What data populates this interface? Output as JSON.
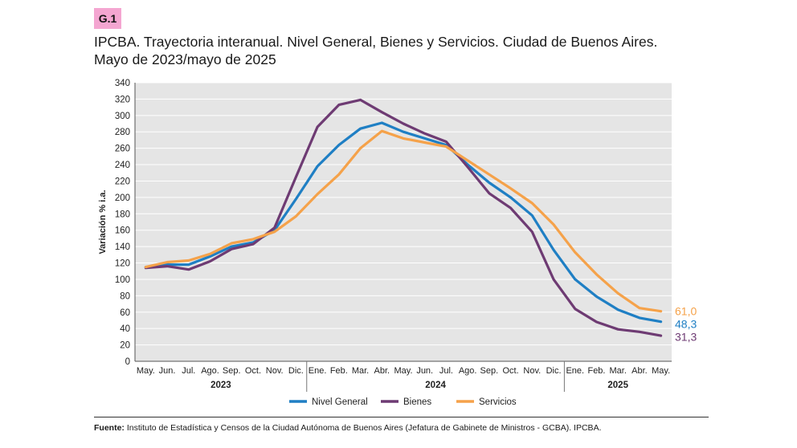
{
  "badge": "G.1",
  "title_line1": "IPCBA. Trayectoria interanual. Nivel General, Bienes y Servicios. Ciudad de Buenos Aires.",
  "title_line2": "Mayo de 2023/mayo de 2025",
  "source_label": "Fuente:",
  "source_text": "Instituto de Estadística y Censos de la Ciudad Autónoma de Buenos Aires (Jefatura de Gabinete de Ministros - GCBA). IPCBA.",
  "colors": {
    "nivel": "#1f7fc4",
    "bienes": "#6e3b73",
    "servicios": "#f5a24a",
    "plot_bg": "#e5e5e5",
    "grid": "#ffffff"
  },
  "chart_data": {
    "type": "line",
    "title": "IPCBA. Trayectoria interanual. Nivel General, Bienes y Servicios. Ciudad de Buenos Aires.",
    "ylabel": "Variación % i.a.",
    "xlabel": "",
    "ylim": [
      0,
      340
    ],
    "yticks": [
      0,
      20,
      40,
      60,
      80,
      100,
      120,
      140,
      160,
      180,
      200,
      220,
      240,
      260,
      280,
      300,
      320,
      340
    ],
    "categories": [
      "May.",
      "Jun.",
      "Jul.",
      "Ago.",
      "Sep.",
      "Oct.",
      "Nov.",
      "Dic.",
      "Ene.",
      "Feb.",
      "Mar.",
      "Abr.",
      "May.",
      "Jun.",
      "Jul.",
      "Ago.",
      "Sep.",
      "Oct.",
      "Nov.",
      "Dic.",
      "Ene.",
      "Feb.",
      "Mar.",
      "Abr.",
      "May."
    ],
    "years": [
      {
        "label": "2023",
        "start": 0,
        "end": 7
      },
      {
        "label": "2024",
        "start": 8,
        "end": 19
      },
      {
        "label": "2025",
        "start": 20,
        "end": 24
      }
    ],
    "series": [
      {
        "name": "Nivel General",
        "color": "#1f7fc4",
        "values": [
          115,
          118,
          118,
          128,
          140,
          145,
          160,
          198,
          238,
          264,
          284,
          291,
          280,
          272,
          264,
          240,
          218,
          200,
          178,
          136,
          100,
          79,
          63,
          53,
          48.3
        ],
        "end_label": "48,3"
      },
      {
        "name": "Bienes",
        "color": "#6e3b73",
        "values": [
          114,
          116,
          112,
          122,
          137,
          143,
          163,
          225,
          286,
          313,
          319,
          304,
          290,
          278,
          268,
          237,
          205,
          187,
          158,
          100,
          64,
          48,
          39,
          36,
          31.3
        ],
        "end_label": "31,3"
      },
      {
        "name": "Servicios",
        "color": "#f5a24a",
        "values": [
          115,
          121,
          123,
          131,
          144,
          149,
          158,
          177,
          204,
          228,
          260,
          281,
          272,
          267,
          262,
          245,
          228,
          211,
          193,
          167,
          133,
          106,
          83,
          65,
          61.0
        ],
        "end_label": "61,0"
      }
    ],
    "legend_position": "bottom"
  }
}
